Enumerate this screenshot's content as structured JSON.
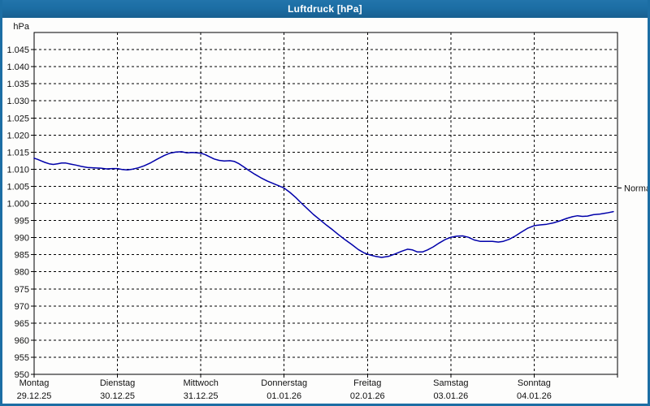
{
  "window": {
    "title": "Luftdruck [hPa]"
  },
  "colors": {
    "titlebar": "#1c6ea4",
    "border": "#1c6ea4",
    "background": "#fdfdfc",
    "grid": "#000000",
    "line": "#0000aa",
    "text": "#111111",
    "title_text": "#ffffff"
  },
  "chart_data": {
    "type": "line",
    "title": "Luftdruck [hPa]",
    "ylabel": "hPa",
    "ylim": [
      950,
      1050
    ],
    "x_range_days": [
      0,
      7
    ],
    "grid": "dashed",
    "legend_position": "none",
    "y_ticks": [
      {
        "v": 1045,
        "label": "1.045"
      },
      {
        "v": 1040,
        "label": "1.040"
      },
      {
        "v": 1035,
        "label": "1.035"
      },
      {
        "v": 1030,
        "label": "1.030"
      },
      {
        "v": 1025,
        "label": "1.025"
      },
      {
        "v": 1020,
        "label": "1.020"
      },
      {
        "v": 1015,
        "label": "1.015"
      },
      {
        "v": 1010,
        "label": "1.010"
      },
      {
        "v": 1005,
        "label": "1.005"
      },
      {
        "v": 1000,
        "label": "1.000"
      },
      {
        "v": 995,
        "label": "995"
      },
      {
        "v": 990,
        "label": "990"
      },
      {
        "v": 985,
        "label": "985"
      },
      {
        "v": 980,
        "label": "980"
      },
      {
        "v": 975,
        "label": "975"
      },
      {
        "v": 970,
        "label": "970"
      },
      {
        "v": 965,
        "label": "965"
      },
      {
        "v": 960,
        "label": "960"
      },
      {
        "v": 955,
        "label": "955"
      },
      {
        "v": 950,
        "label": "950"
      }
    ],
    "x_ticks": [
      {
        "day": "Montag",
        "date": "29.12.25"
      },
      {
        "day": "Dienstag",
        "date": "30.12.25"
      },
      {
        "day": "Mittwoch",
        "date": "31.12.25"
      },
      {
        "day": "Donnerstag",
        "date": "01.01.26"
      },
      {
        "day": "Freitag",
        "date": "02.01.26"
      },
      {
        "day": "Samstag",
        "date": "03.01.26"
      },
      {
        "day": "Sonntag",
        "date": "04.01.26"
      }
    ],
    "annotations": [
      {
        "label": "Normal",
        "value": 1004.5,
        "side": "right"
      }
    ],
    "series": [
      {
        "name": "Luftdruck",
        "color": "#0000aa",
        "points": [
          [
            0.0,
            1013.2
          ],
          [
            0.04,
            1012.9
          ],
          [
            0.08,
            1012.5
          ],
          [
            0.13,
            1012.0
          ],
          [
            0.18,
            1011.6
          ],
          [
            0.23,
            1011.4
          ],
          [
            0.28,
            1011.6
          ],
          [
            0.33,
            1011.8
          ],
          [
            0.38,
            1011.8
          ],
          [
            0.44,
            1011.5
          ],
          [
            0.5,
            1011.2
          ],
          [
            0.57,
            1010.8
          ],
          [
            0.64,
            1010.5
          ],
          [
            0.72,
            1010.4
          ],
          [
            0.8,
            1010.3
          ],
          [
            0.87,
            1010.1
          ],
          [
            0.94,
            1010.2
          ],
          [
            1.0,
            1010.2
          ],
          [
            1.06,
            1009.9
          ],
          [
            1.12,
            1009.8
          ],
          [
            1.18,
            1010.0
          ],
          [
            1.25,
            1010.4
          ],
          [
            1.32,
            1011.0
          ],
          [
            1.4,
            1011.9
          ],
          [
            1.48,
            1013.0
          ],
          [
            1.56,
            1014.0
          ],
          [
            1.63,
            1014.7
          ],
          [
            1.7,
            1015.0
          ],
          [
            1.77,
            1015.1
          ],
          [
            1.83,
            1014.8
          ],
          [
            1.9,
            1014.9
          ],
          [
            1.96,
            1014.8
          ],
          [
            2.0,
            1014.7
          ],
          [
            2.05,
            1014.3
          ],
          [
            2.1,
            1013.7
          ],
          [
            2.16,
            1013.0
          ],
          [
            2.22,
            1012.6
          ],
          [
            2.28,
            1012.4
          ],
          [
            2.35,
            1012.5
          ],
          [
            2.4,
            1012.3
          ],
          [
            2.46,
            1011.6
          ],
          [
            2.52,
            1010.6
          ],
          [
            2.58,
            1009.6
          ],
          [
            2.65,
            1008.5
          ],
          [
            2.72,
            1007.5
          ],
          [
            2.8,
            1006.5
          ],
          [
            2.9,
            1005.5
          ],
          [
            3.0,
            1004.5
          ],
          [
            3.07,
            1003.2
          ],
          [
            3.14,
            1001.7
          ],
          [
            3.21,
            1000.0
          ],
          [
            3.28,
            998.4
          ],
          [
            3.35,
            996.8
          ],
          [
            3.43,
            995.2
          ],
          [
            3.51,
            993.6
          ],
          [
            3.58,
            992.3
          ],
          [
            3.65,
            990.9
          ],
          [
            3.73,
            989.4
          ],
          [
            3.81,
            988.0
          ],
          [
            3.89,
            986.5
          ],
          [
            3.96,
            985.5
          ],
          [
            4.02,
            985.0
          ],
          [
            4.1,
            984.5
          ],
          [
            4.17,
            984.2
          ],
          [
            4.25,
            984.5
          ],
          [
            4.33,
            985.2
          ],
          [
            4.41,
            986.0
          ],
          [
            4.48,
            986.6
          ],
          [
            4.54,
            986.4
          ],
          [
            4.6,
            985.8
          ],
          [
            4.66,
            985.8
          ],
          [
            4.72,
            986.4
          ],
          [
            4.79,
            987.3
          ],
          [
            4.86,
            988.4
          ],
          [
            4.93,
            989.4
          ],
          [
            5.0,
            990.1
          ],
          [
            5.07,
            990.4
          ],
          [
            5.14,
            990.5
          ],
          [
            5.21,
            990.1
          ],
          [
            5.28,
            989.3
          ],
          [
            5.35,
            988.9
          ],
          [
            5.43,
            988.9
          ],
          [
            5.5,
            988.9
          ],
          [
            5.57,
            988.7
          ],
          [
            5.63,
            988.9
          ],
          [
            5.7,
            989.5
          ],
          [
            5.77,
            990.4
          ],
          [
            5.84,
            991.5
          ],
          [
            5.92,
            992.7
          ],
          [
            6.0,
            993.5
          ],
          [
            6.07,
            993.7
          ],
          [
            6.15,
            993.9
          ],
          [
            6.23,
            994.3
          ],
          [
            6.31,
            994.9
          ],
          [
            6.39,
            995.6
          ],
          [
            6.46,
            996.1
          ],
          [
            6.52,
            996.4
          ],
          [
            6.58,
            996.2
          ],
          [
            6.64,
            996.3
          ],
          [
            6.71,
            996.7
          ],
          [
            6.79,
            996.9
          ],
          [
            6.87,
            997.2
          ],
          [
            6.95,
            997.6
          ]
        ]
      }
    ]
  }
}
